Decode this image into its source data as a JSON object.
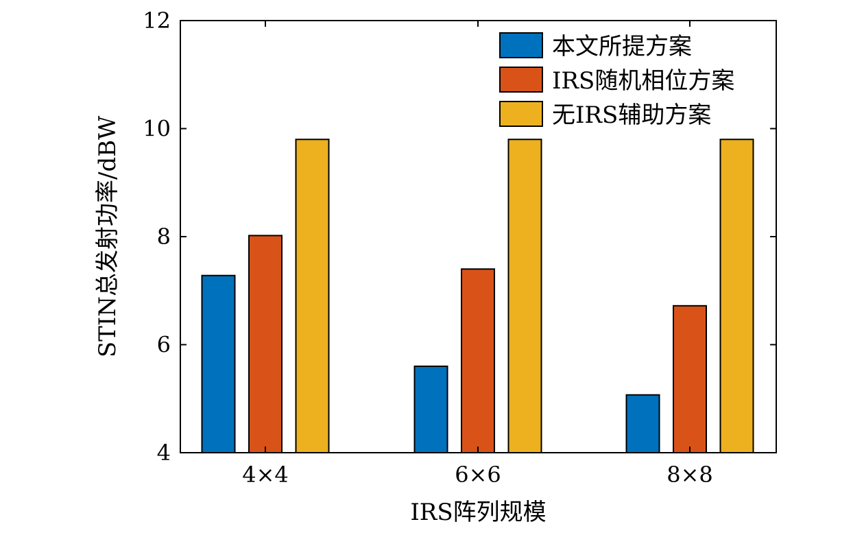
{
  "chart_data": {
    "type": "bar",
    "xlabel": "IRS阵列规模",
    "ylabel": "STIN总发射功率/dBW",
    "categories": [
      "4×4",
      "6×6",
      "8×8"
    ],
    "ylim": [
      4,
      12
    ],
    "yticks": [
      4,
      6,
      8,
      10,
      12
    ],
    "grid": false,
    "legend_position": "top-right",
    "series": [
      {
        "name": "本文所提方案",
        "color": "#0072BD",
        "values": [
          7.28,
          5.6,
          5.07
        ]
      },
      {
        "name": "IRS随机相位方案",
        "color": "#D95319",
        "values": [
          8.02,
          7.4,
          6.72
        ]
      },
      {
        "name": "无IRS辅助方案",
        "color": "#EDB120",
        "values": [
          9.8,
          9.8,
          9.8
        ]
      }
    ]
  }
}
